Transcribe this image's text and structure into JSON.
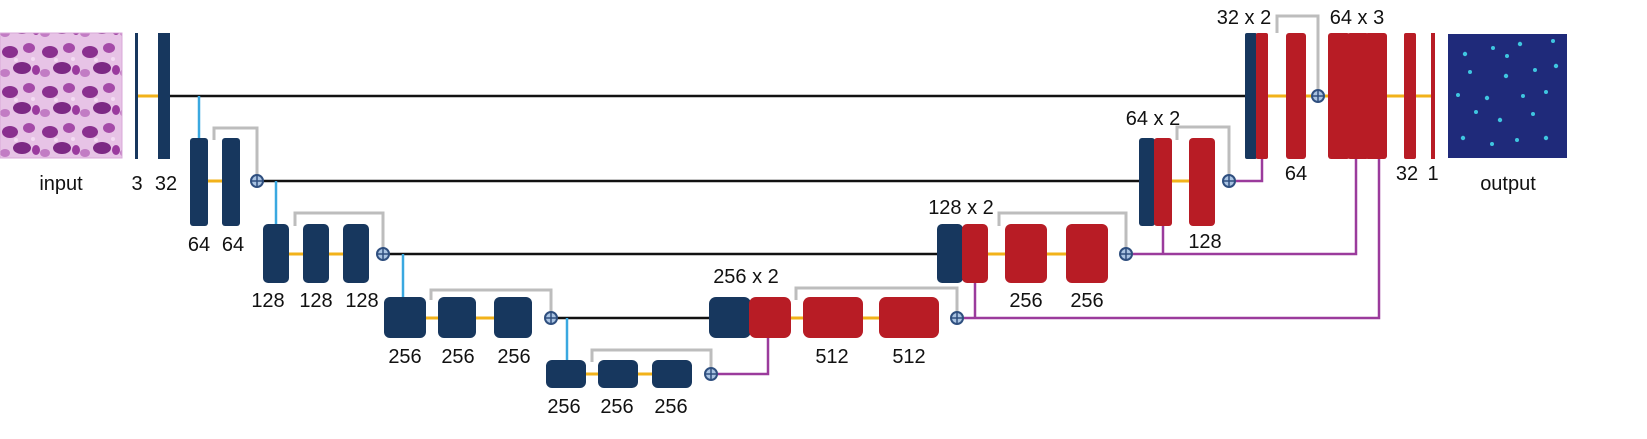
{
  "images": {
    "input": {
      "label": "input"
    },
    "output": {
      "label": "output"
    }
  },
  "labels": {
    "enc0_in": "3",
    "enc0": "32",
    "enc1a": "64",
    "enc1b": "64",
    "enc2a": "128",
    "enc2b": "128",
    "enc2c": "128",
    "enc3a": "256",
    "enc3b": "256",
    "enc3c": "256",
    "bott_a": "256",
    "bott_b": "256",
    "bott_c": "256",
    "dec3_head": "256 x 2",
    "dec3a": "512",
    "dec3b": "512",
    "dec2_head": "128 x 2",
    "dec2a": "256",
    "dec2b": "256",
    "dec1_head": "64 x 2",
    "dec1": "128",
    "dec0_head": "32 x 2",
    "dec0": "64",
    "final_head": "64 x 3",
    "out_a": "32",
    "out_b": "1"
  },
  "colors": {
    "encoder": "#17375e",
    "decoder": "#b81c25",
    "main_line": "#111111",
    "skip_inner": "#f2b21a",
    "residual": "#bdbdbd",
    "downsample": "#3aa8e0",
    "upsample": "#9b3b9c",
    "add_node": "#4a6fa5",
    "output_bg": "#1f2a7a",
    "output_dots": "#3fc6e0",
    "input_purple": "#a44ca6"
  }
}
